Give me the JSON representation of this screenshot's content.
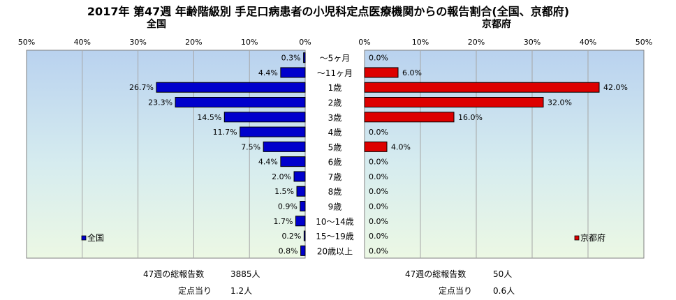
{
  "chart_data": {
    "type": "bar",
    "title": "2017年 第47週 年齢階級別 手足口病患者の小児科定点医療機関からの報告割合(全国、京都府)",
    "categories": [
      "～5ヶ月",
      "～11ヶ月",
      "1歳",
      "2歳",
      "3歳",
      "4歳",
      "5歳",
      "6歳",
      "7歳",
      "8歳",
      "9歳",
      "10～14歳",
      "15～19歳",
      "20歳以上"
    ],
    "xlim": [
      0,
      50
    ],
    "tick_labels": [
      "0%",
      "10%",
      "20%",
      "30%",
      "40%",
      "50%"
    ],
    "grid": true,
    "series": [
      {
        "name": "全国",
        "panel_title": "全国",
        "color": "#0000cc",
        "values": [
          0.3,
          4.4,
          26.7,
          23.3,
          14.5,
          11.7,
          7.5,
          4.4,
          2.0,
          1.5,
          0.9,
          1.7,
          0.2,
          0.8
        ],
        "value_labels": [
          "0.3%",
          "4.4%",
          "26.7%",
          "23.3%",
          "14.5%",
          "11.7%",
          "7.5%",
          "4.4%",
          "2.0%",
          "1.5%",
          "0.9%",
          "1.7%",
          "0.2%",
          "0.8%"
        ],
        "legend_position": "bottom-left"
      },
      {
        "name": "京都府",
        "panel_title": "京都府",
        "color": "#dd0000",
        "values": [
          0.0,
          6.0,
          42.0,
          32.0,
          16.0,
          0.0,
          4.0,
          0.0,
          0.0,
          0.0,
          0.0,
          0.0,
          0.0,
          0.0
        ],
        "value_labels": [
          "0.0%",
          "6.0%",
          "42.0%",
          "32.0%",
          "16.0%",
          "0.0%",
          "4.0%",
          "0.0%",
          "0.0%",
          "0.0%",
          "0.0%",
          "0.0%",
          "0.0%",
          "0.0%"
        ],
        "legend_position": "bottom-right"
      }
    ],
    "plot_background": [
      "#b9d2ef",
      "#d6ecef",
      "#ecf8e4"
    ]
  },
  "stats": {
    "national": {
      "total_label": "47週の総報告数",
      "total_value": "3885人",
      "per_site_label": "定点当り",
      "per_site_value": "1.2人"
    },
    "kyoto": {
      "total_label": "47週の総報告数",
      "total_value": "50人",
      "per_site_label": "定点当り",
      "per_site_value": "0.6人"
    }
  }
}
